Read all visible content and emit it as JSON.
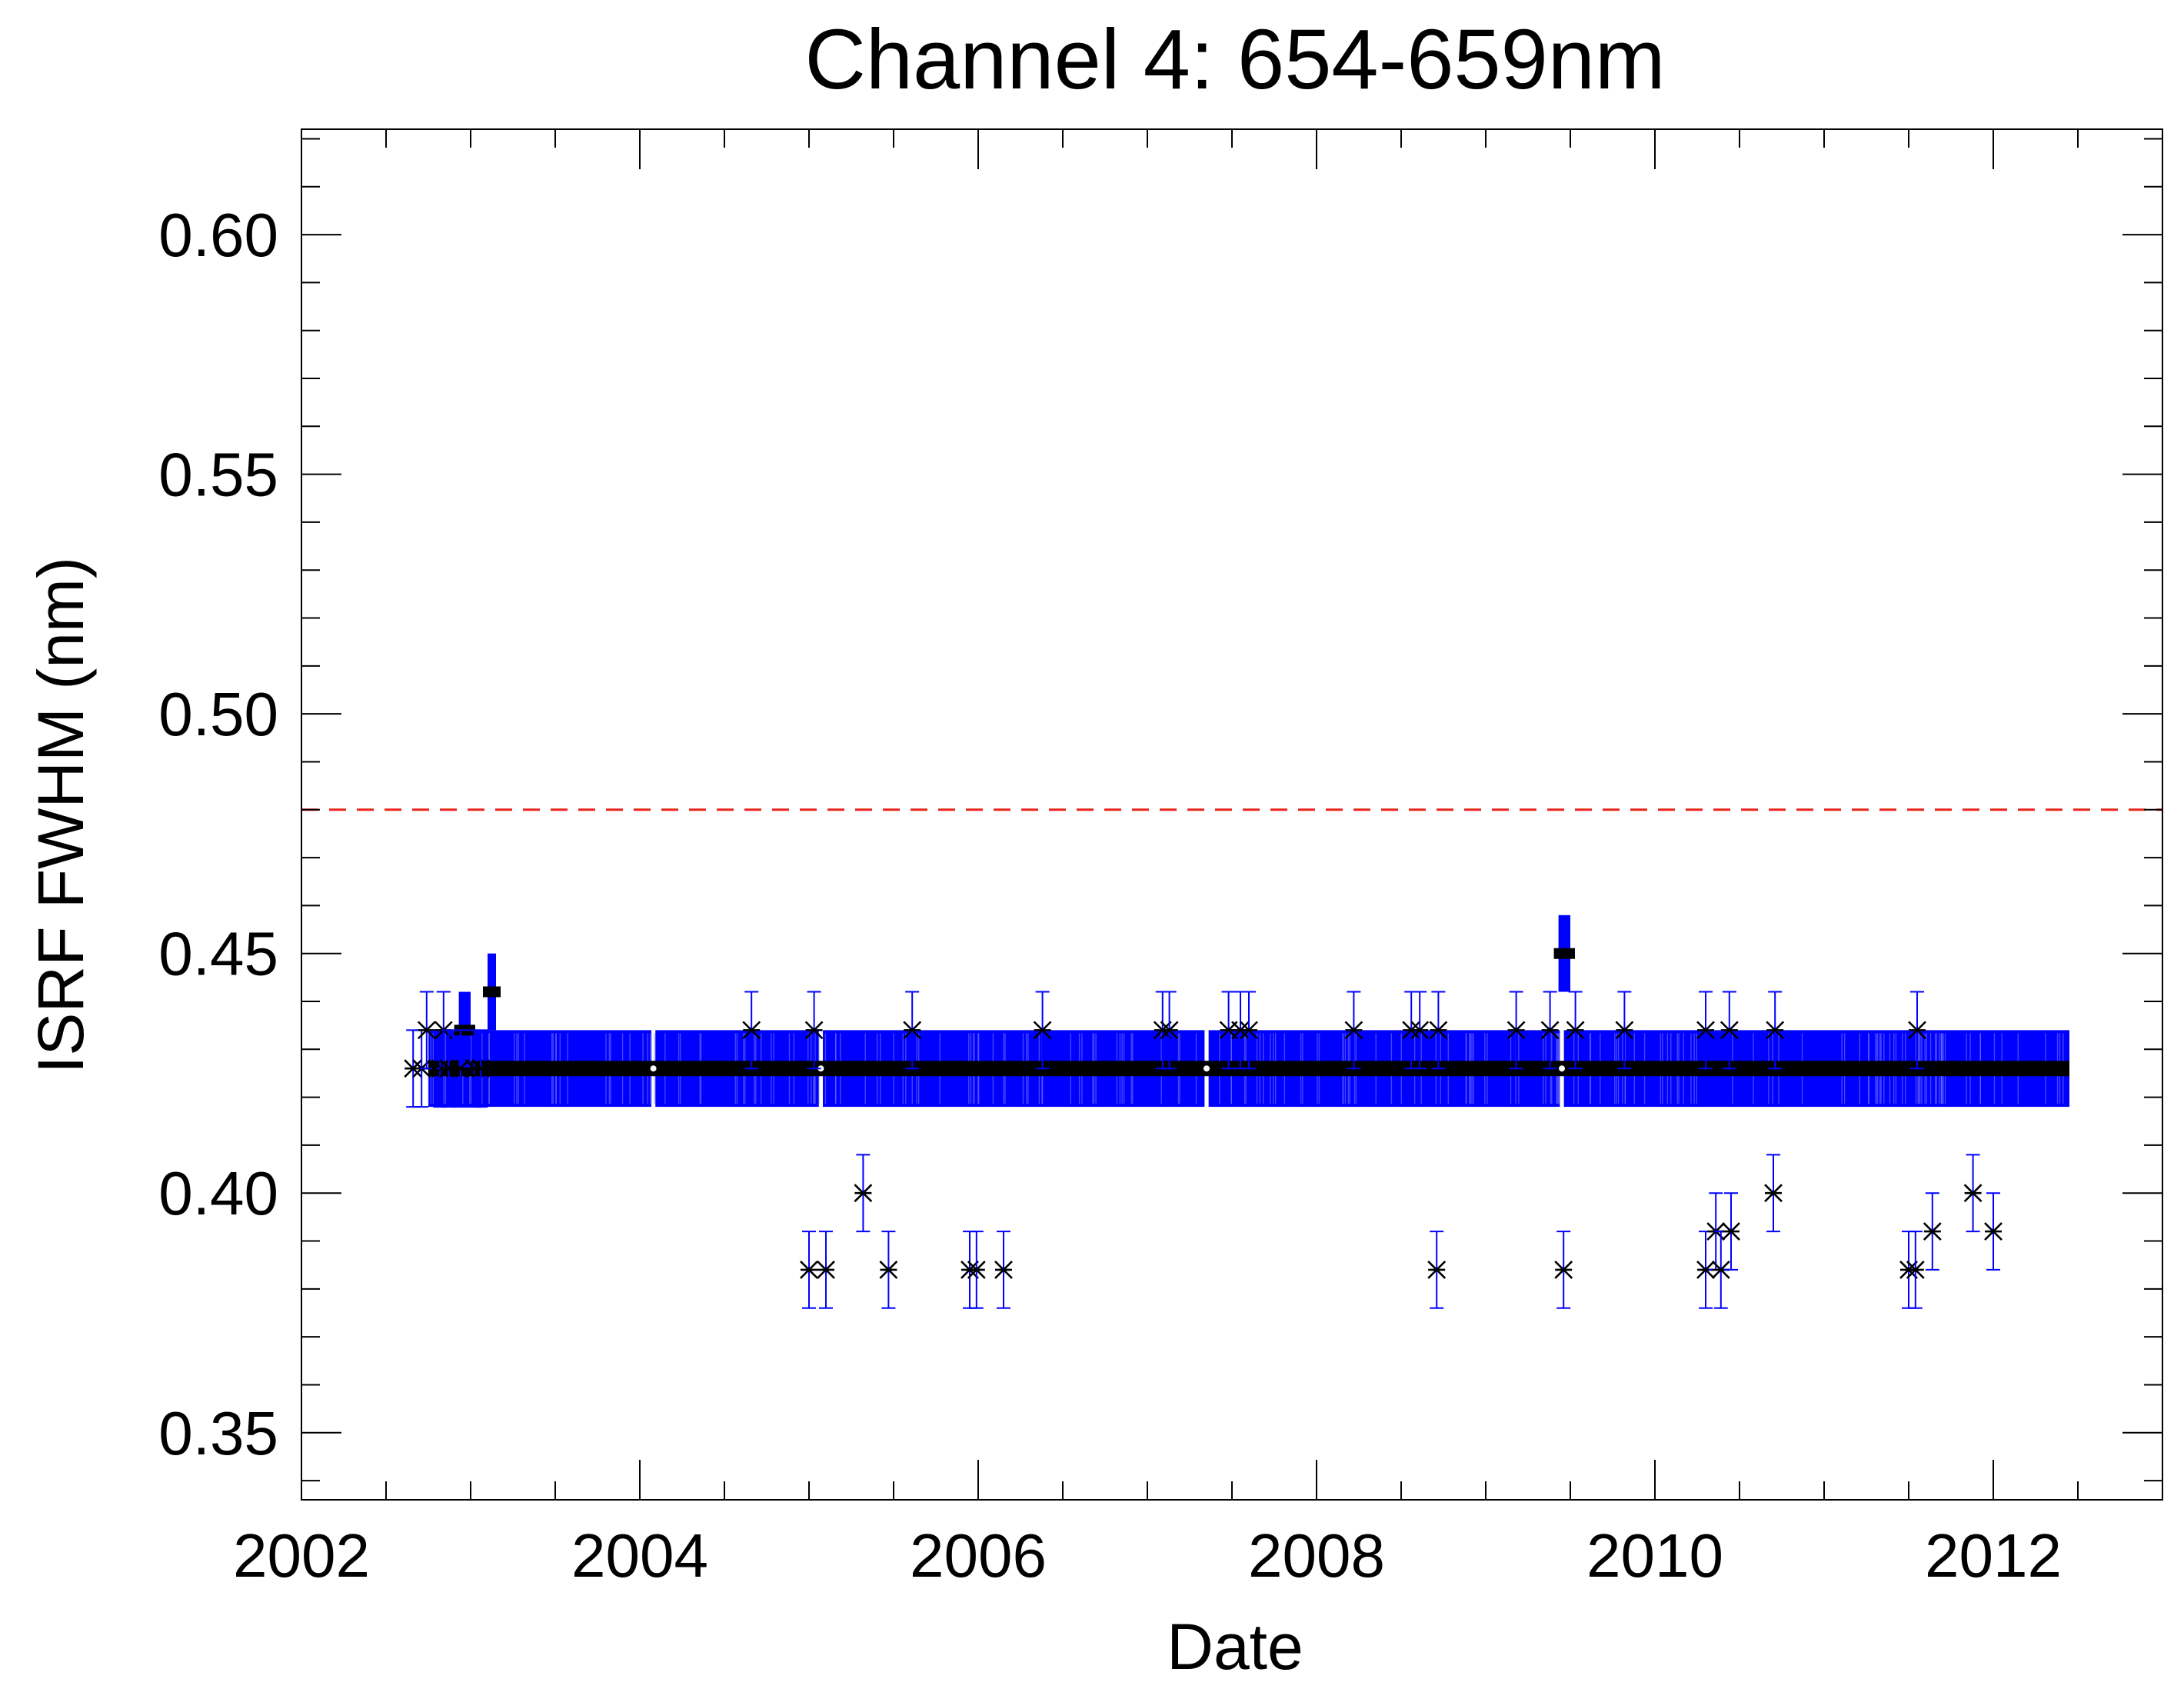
{
  "chart_data": {
    "type": "scatter",
    "title": "Channel 4: 654-659nm",
    "xlabel": "Date",
    "ylabel": "ISRF FWHM (nm)",
    "xlim": [
      2002.0,
      2013.0
    ],
    "ylim": [
      0.336,
      0.622
    ],
    "x_ticks": [
      "2002",
      "2004",
      "2006",
      "2008",
      "2010",
      "2012"
    ],
    "x_tick_values": [
      2002,
      2004,
      2006,
      2008,
      2010,
      2012
    ],
    "y_ticks": [
      "0.35",
      "0.40",
      "0.45",
      "0.50",
      "0.55",
      "0.60"
    ],
    "y_tick_values": [
      0.35,
      0.4,
      0.45,
      0.5,
      0.55,
      0.6
    ],
    "threshold": {
      "y": 0.48,
      "color": "#e8251c",
      "style": "dashed"
    },
    "error_half_width": 0.008,
    "colors": {
      "marker": "#000000",
      "errorbar": "#0000ff",
      "dense_band": "#0000ff"
    },
    "legend": "none",
    "grid": false,
    "dense_band": {
      "x_range": [
        2002.75,
        2012.45
      ],
      "y": 0.426,
      "low": 0.418,
      "high": 0.434,
      "gaps": [
        2004.08,
        2005.07,
        2007.35,
        2009.45
      ]
    },
    "clusters": [
      {
        "x": [
          2002.93,
          2003.0
        ],
        "y": 0.434
      },
      {
        "x": [
          2003.1,
          2003.15
        ],
        "y": 0.442
      },
      {
        "x": [
          2009.43,
          2009.5
        ],
        "y": 0.45
      }
    ],
    "series": [
      {
        "marker": "asterisk",
        "points": [
          [
            2002.66,
            0.426
          ],
          [
            2002.71,
            0.426
          ],
          [
            2002.74,
            0.434
          ],
          [
            2002.82,
            0.426
          ],
          [
            2002.84,
            0.434
          ],
          [
            2002.87,
            0.426
          ],
          [
            2002.94,
            0.426
          ],
          [
            2003.02,
            0.426
          ],
          [
            2003.06,
            0.426
          ],
          [
            2004.66,
            0.434
          ],
          [
            2005.0,
            0.384
          ],
          [
            2005.03,
            0.434
          ],
          [
            2005.1,
            0.384
          ],
          [
            2005.32,
            0.4
          ],
          [
            2005.47,
            0.384
          ],
          [
            2005.61,
            0.434
          ],
          [
            2005.95,
            0.384
          ],
          [
            2005.99,
            0.384
          ],
          [
            2006.15,
            0.384
          ],
          [
            2006.38,
            0.434
          ],
          [
            2007.09,
            0.434
          ],
          [
            2007.13,
            0.434
          ],
          [
            2007.48,
            0.434
          ],
          [
            2007.55,
            0.434
          ],
          [
            2007.6,
            0.434
          ],
          [
            2008.22,
            0.434
          ],
          [
            2008.56,
            0.434
          ],
          [
            2008.61,
            0.434
          ],
          [
            2008.71,
            0.384
          ],
          [
            2008.72,
            0.434
          ],
          [
            2009.18,
            0.434
          ],
          [
            2009.38,
            0.434
          ],
          [
            2009.46,
            0.384
          ],
          [
            2009.53,
            0.434
          ],
          [
            2009.82,
            0.434
          ],
          [
            2010.3,
            0.434
          ],
          [
            2010.3,
            0.384
          ],
          [
            2010.36,
            0.392
          ],
          [
            2010.39,
            0.384
          ],
          [
            2010.44,
            0.434
          ],
          [
            2010.45,
            0.392
          ],
          [
            2010.7,
            0.4
          ],
          [
            2010.71,
            0.434
          ],
          [
            2011.5,
            0.384
          ],
          [
            2011.54,
            0.384
          ],
          [
            2011.55,
            0.434
          ],
          [
            2011.64,
            0.392
          ],
          [
            2011.88,
            0.4
          ],
          [
            2012.0,
            0.392
          ]
        ]
      }
    ]
  }
}
